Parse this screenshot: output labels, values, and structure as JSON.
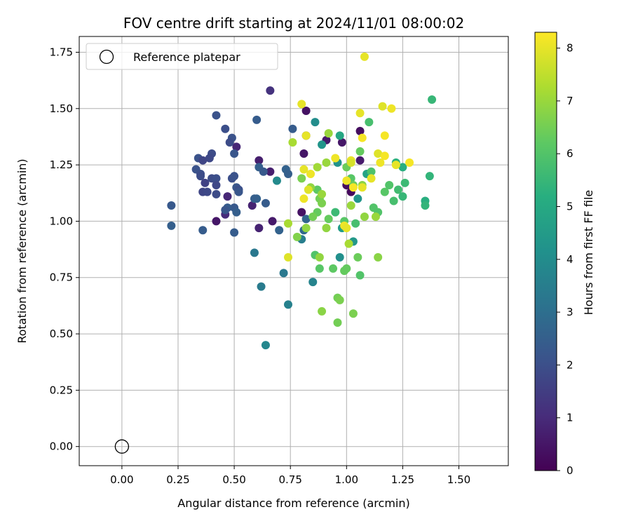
{
  "chart_data": {
    "type": "scatter",
    "title": "FOV centre drift starting at 2024/11/01 08:00:02",
    "xlabel": "Angular distance from reference (arcmin)",
    "ylabel": "Rotation from reference (arcmin)",
    "xlim": [
      -0.19,
      1.72
    ],
    "ylim": [
      -0.085,
      1.82
    ],
    "x_ticks": [
      0.0,
      0.25,
      0.5,
      0.75,
      1.0,
      1.25,
      1.5
    ],
    "x_tick_labels": [
      "0.00",
      "0.25",
      "0.50",
      "0.75",
      "1.00",
      "1.25",
      "1.50"
    ],
    "y_ticks": [
      0.0,
      0.25,
      0.5,
      0.75,
      1.0,
      1.25,
      1.5,
      1.75
    ],
    "y_tick_labels": [
      "0.00",
      "0.25",
      "0.50",
      "0.75",
      "1.00",
      "1.25",
      "1.50",
      "1.75"
    ],
    "grid": true,
    "legend": {
      "position": "top-left",
      "entries": [
        "Reference platepar"
      ]
    },
    "reference_point": {
      "x": 0.0,
      "y": 0.0,
      "marker": "open-circle"
    },
    "colorbar": {
      "label": "Hours from first FF file",
      "colormap": "viridis",
      "min": 0,
      "max": 8.3,
      "ticks": [
        0,
        1,
        2,
        3,
        4,
        5,
        6,
        7,
        8
      ],
      "tick_labels": [
        "0",
        "1",
        "2",
        "3",
        "4",
        "5",
        "6",
        "7",
        "8"
      ]
    },
    "series": [
      {
        "points": [
          [
            0.66,
            1.58,
            1.2
          ],
          [
            0.82,
            1.49,
            0.4
          ],
          [
            0.82,
            1.38,
            0.5
          ],
          [
            0.91,
            1.36,
            0.6
          ],
          [
            0.98,
            1.35,
            0.5
          ],
          [
            1.06,
            1.4,
            0.3
          ],
          [
            1.06,
            1.27,
            0.6
          ],
          [
            0.81,
            1.3,
            0.5
          ],
          [
            0.51,
            1.33,
            0.9
          ],
          [
            0.47,
            1.11,
            0.9
          ],
          [
            0.46,
            1.03,
            1.0
          ],
          [
            0.42,
            1.0,
            0.5
          ],
          [
            0.61,
            1.27,
            0.7
          ],
          [
            0.66,
            1.22,
            0.7
          ],
          [
            0.61,
            0.97,
            0.8
          ],
          [
            0.67,
            1.0,
            0.6
          ],
          [
            0.58,
            1.07,
            0.8
          ],
          [
            0.8,
            1.04,
            0.4
          ],
          [
            1.02,
            1.13,
            0.2
          ],
          [
            1.0,
            1.16,
            0.3
          ],
          [
            0.42,
            1.47,
            2.1
          ],
          [
            0.46,
            1.41,
            2.0
          ],
          [
            0.49,
            1.37,
            2.1
          ],
          [
            0.48,
            1.35,
            1.9
          ],
          [
            0.4,
            1.3,
            1.9
          ],
          [
            0.39,
            1.28,
            1.8
          ],
          [
            0.34,
            1.28,
            2.1
          ],
          [
            0.36,
            1.27,
            1.7
          ],
          [
            0.33,
            1.23,
            2.1
          ],
          [
            0.35,
            1.21,
            2.0
          ],
          [
            0.35,
            1.2,
            1.9
          ],
          [
            0.37,
            1.17,
            1.6
          ],
          [
            0.4,
            1.19,
            1.9
          ],
          [
            0.42,
            1.19,
            2.0
          ],
          [
            0.42,
            1.16,
            1.8
          ],
          [
            0.36,
            1.13,
            1.7
          ],
          [
            0.38,
            1.13,
            1.8
          ],
          [
            0.42,
            1.12,
            1.9
          ],
          [
            0.49,
            1.19,
            2.0
          ],
          [
            0.5,
            1.2,
            2.1
          ],
          [
            0.51,
            1.15,
            2.2
          ],
          [
            0.52,
            1.14,
            2.0
          ],
          [
            0.52,
            1.13,
            2.2
          ],
          [
            0.5,
            1.06,
            2.3
          ],
          [
            0.47,
            1.06,
            2.4
          ],
          [
            0.46,
            1.05,
            2.2
          ],
          [
            0.51,
            1.04,
            2.5
          ],
          [
            0.5,
            1.3,
            2.2
          ],
          [
            0.6,
            1.45,
            2.4
          ],
          [
            0.61,
            1.24,
            2.5
          ],
          [
            0.63,
            1.22,
            2.3
          ],
          [
            0.64,
            1.08,
            2.4
          ],
          [
            0.6,
            1.1,
            2.6
          ],
          [
            0.59,
            1.1,
            2.5
          ],
          [
            0.7,
            0.96,
            2.6
          ],
          [
            0.5,
            0.95,
            2.4
          ],
          [
            0.22,
            1.07,
            2.3
          ],
          [
            0.22,
            0.98,
            2.5
          ],
          [
            0.36,
            0.96,
            2.4
          ],
          [
            0.76,
            1.41,
            2.4
          ],
          [
            0.73,
            1.23,
            2.6
          ],
          [
            0.74,
            1.21,
            2.5
          ],
          [
            0.82,
            1.01,
            2.7
          ],
          [
            0.81,
            0.96,
            2.8
          ],
          [
            0.59,
            0.86,
            3.3
          ],
          [
            0.72,
            0.77,
            3.3
          ],
          [
            0.62,
            0.71,
            3.4
          ],
          [
            0.74,
            0.63,
            3.6
          ],
          [
            0.64,
            0.45,
            3.8
          ],
          [
            0.69,
            1.18,
            3.9
          ],
          [
            0.8,
            0.92,
            3.5
          ],
          [
            0.85,
            0.73,
            3.7
          ],
          [
            0.86,
            1.44,
            4.0
          ],
          [
            0.89,
            1.34,
            4.3
          ],
          [
            0.96,
            1.26,
            4.2
          ],
          [
            0.97,
            0.84,
            4.1
          ],
          [
            1.03,
            0.91,
            4.4
          ],
          [
            0.98,
            0.97,
            4.5
          ],
          [
            1.05,
            1.1,
            4.3
          ],
          [
            1.09,
            1.21,
            4.8
          ],
          [
            0.97,
            1.38,
            4.9
          ],
          [
            1.38,
            1.54,
            5.5
          ],
          [
            1.37,
            1.2,
            5.4
          ],
          [
            1.35,
            1.09,
            5.2
          ],
          [
            1.35,
            1.07,
            5.4
          ],
          [
            1.22,
            1.26,
            5.3
          ],
          [
            1.25,
            1.24,
            5.2
          ],
          [
            1.26,
            1.17,
            5.6
          ],
          [
            1.23,
            1.14,
            5.7
          ],
          [
            1.25,
            1.11,
            5.5
          ],
          [
            1.21,
            1.09,
            5.8
          ],
          [
            1.19,
            1.16,
            6.0
          ],
          [
            1.17,
            1.13,
            6.1
          ],
          [
            1.11,
            1.22,
            5.9
          ],
          [
            1.12,
            1.06,
            6.0
          ],
          [
            1.14,
            1.04,
            6.0
          ],
          [
            1.04,
            0.99,
            5.8
          ],
          [
            0.95,
            1.04,
            5.6
          ],
          [
            0.99,
            1.0,
            6.1
          ],
          [
            0.92,
            1.01,
            6.3
          ],
          [
            1.1,
            1.44,
            5.8
          ],
          [
            1.06,
            1.31,
            6.3
          ],
          [
            1.0,
            1.24,
            6.4
          ],
          [
            1.02,
            1.19,
            6.1
          ],
          [
            1.03,
            1.16,
            6.4
          ],
          [
            0.87,
            1.14,
            6.2
          ],
          [
            0.88,
            1.1,
            6.5
          ],
          [
            0.89,
            1.08,
            6.6
          ],
          [
            0.87,
            1.04,
            6.3
          ],
          [
            0.85,
            1.02,
            6.5
          ],
          [
            0.86,
            0.85,
            6.0
          ],
          [
            0.88,
            0.79,
            6.1
          ],
          [
            0.94,
            0.79,
            6.2
          ],
          [
            0.99,
            0.78,
            6.3
          ],
          [
            1.0,
            0.79,
            6.3
          ],
          [
            1.06,
            0.76,
            6.0
          ],
          [
            1.05,
            0.84,
            6.4
          ],
          [
            0.96,
            0.66,
            6.5
          ],
          [
            0.97,
            0.65,
            6.6
          ],
          [
            0.96,
            0.55,
            6.5
          ],
          [
            0.89,
            0.6,
            6.8
          ],
          [
            1.03,
            0.59,
            6.6
          ],
          [
            1.14,
            0.84,
            6.8
          ],
          [
            1.08,
            1.02,
            6.9
          ],
          [
            1.13,
            1.02,
            7.0
          ],
          [
            0.82,
            0.97,
            6.9
          ],
          [
            0.78,
            0.93,
            6.7
          ],
          [
            0.88,
            0.84,
            6.9
          ],
          [
            0.91,
            0.97,
            6.9
          ],
          [
            0.8,
            1.19,
            6.6
          ],
          [
            0.84,
            1.15,
            6.9
          ],
          [
            0.89,
            1.12,
            7.0
          ],
          [
            0.92,
            1.39,
            7.0
          ],
          [
            0.76,
            1.35,
            7.2
          ],
          [
            0.91,
            1.26,
            7.0
          ],
          [
            1.01,
            0.9,
            7.2
          ],
          [
            1.02,
            1.07,
            7.0
          ],
          [
            1.07,
            1.16,
            6.8
          ],
          [
            0.74,
            0.99,
            7.2
          ],
          [
            0.87,
            1.24,
            7.1
          ],
          [
            1.08,
            1.73,
            8.0
          ],
          [
            0.8,
            1.52,
            8.0
          ],
          [
            1.16,
            1.51,
            7.9
          ],
          [
            1.2,
            1.5,
            8.1
          ],
          [
            1.06,
            1.48,
            8.0
          ],
          [
            1.17,
            1.38,
            8.2
          ],
          [
            1.07,
            1.37,
            8.2
          ],
          [
            0.82,
            1.38,
            8.0
          ],
          [
            0.95,
            1.28,
            8.1
          ],
          [
            1.02,
            1.27,
            8.0
          ],
          [
            1.14,
            1.3,
            7.9
          ],
          [
            1.17,
            1.29,
            8.2
          ],
          [
            1.28,
            1.26,
            8.2
          ],
          [
            1.22,
            1.25,
            8.0
          ],
          [
            1.15,
            1.26,
            8.1
          ],
          [
            0.81,
            1.23,
            8.0
          ],
          [
            0.84,
            1.21,
            8.1
          ],
          [
            0.83,
            1.14,
            7.9
          ],
          [
            0.81,
            1.1,
            8.1
          ],
          [
            1.0,
            1.18,
            8.1
          ],
          [
            1.03,
            1.15,
            8.2
          ],
          [
            1.07,
            1.15,
            8.0
          ],
          [
            1.11,
            1.19,
            8.0
          ],
          [
            0.99,
            0.98,
            8.1
          ],
          [
            1.0,
            0.97,
            8.0
          ],
          [
            0.74,
            0.84,
            7.9
          ],
          [
            1.02,
            1.26,
            7.8
          ]
        ]
      }
    ]
  }
}
